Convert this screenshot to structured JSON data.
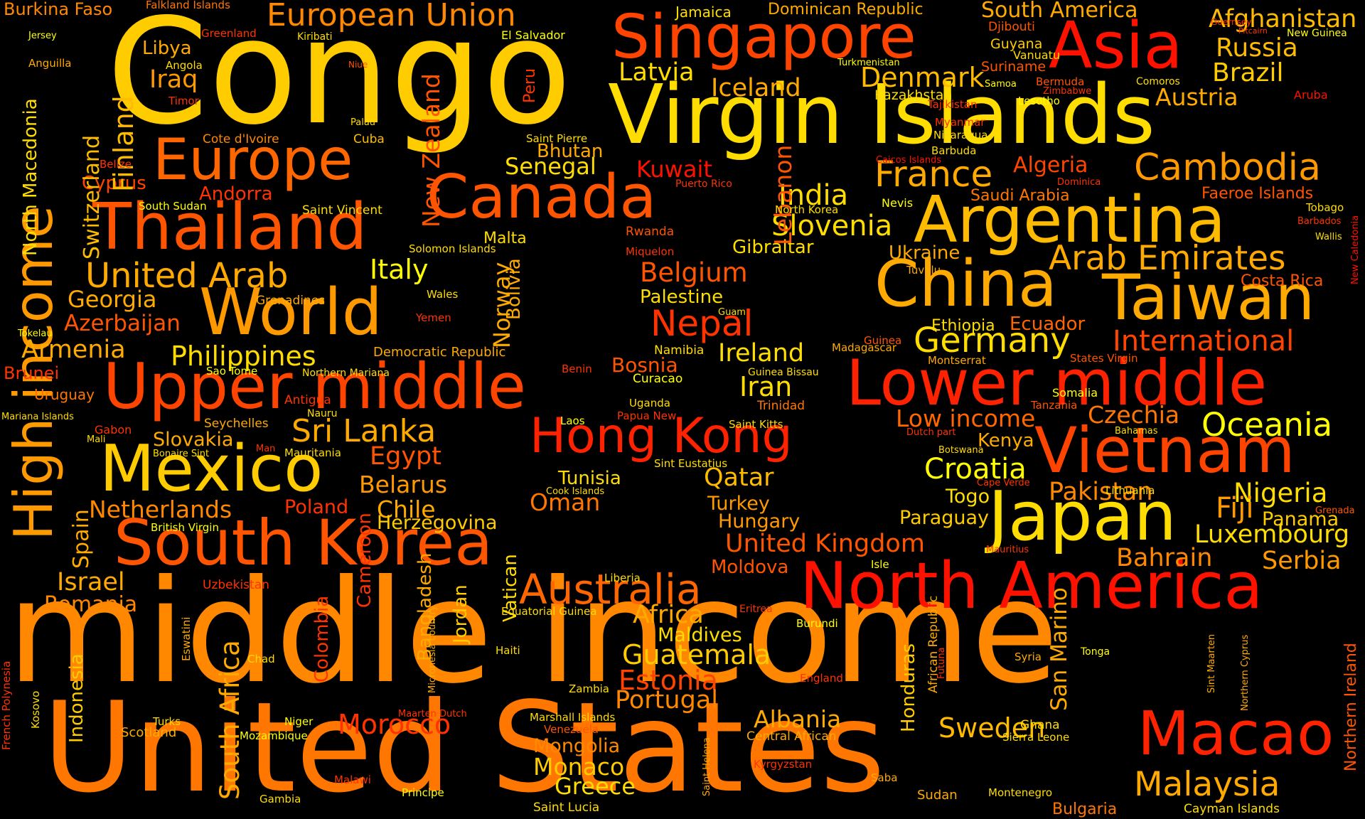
{
  "palette": {
    "background": "#000000",
    "colors": [
      "#ff0000",
      "#ff3300",
      "#ff5500",
      "#ff7700",
      "#ff9900",
      "#ffbb00",
      "#ffdd00",
      "#ffff00"
    ]
  },
  "words": [
    {
      "text": "Congo",
      "color": "#ffcc00"
    },
    {
      "text": "middle income",
      "color": "#ff8800"
    },
    {
      "text": "United States",
      "color": "#ff7700"
    },
    {
      "text": "Virgin Islands",
      "color": "#ffdd00"
    },
    {
      "text": "Singapore",
      "color": "#ff4400"
    },
    {
      "text": "Asia",
      "color": "#ff1100"
    },
    {
      "text": "Europe",
      "color": "#ff6600"
    },
    {
      "text": "European Union",
      "color": "#ff8800"
    },
    {
      "text": "Canada",
      "color": "#ff5500"
    },
    {
      "text": "Thailand",
      "color": "#ff5500"
    },
    {
      "text": "Argentina",
      "color": "#ffbb00"
    },
    {
      "text": "China",
      "color": "#ffaa00"
    },
    {
      "text": "Taiwan",
      "color": "#ffaa00"
    },
    {
      "text": "World",
      "color": "#ff9900"
    },
    {
      "text": "Upper middle",
      "color": "#ff4400"
    },
    {
      "text": "Lower middle",
      "color": "#ff2200"
    },
    {
      "text": "Mexico",
      "color": "#ffcc00"
    },
    {
      "text": "Vietnam",
      "color": "#ff4400"
    },
    {
      "text": "Japan",
      "color": "#ffdd00"
    },
    {
      "text": "South Korea",
      "color": "#ff5500"
    },
    {
      "text": "North America",
      "color": "#ff1100"
    },
    {
      "text": "Macao",
      "color": "#ff2200"
    },
    {
      "text": "High income",
      "color": "#ff9900"
    },
    {
      "text": "Hong Kong",
      "color": "#ff2200"
    },
    {
      "text": "Australia",
      "color": "#ff6600"
    },
    {
      "text": "Afghanistan",
      "color": "#ffbb00"
    },
    {
      "text": "Russia",
      "color": "#ffbb00"
    },
    {
      "text": "Brazil",
      "color": "#ffcc00"
    },
    {
      "text": "Austria",
      "color": "#ffaa00"
    },
    {
      "text": "Cambodia",
      "color": "#ff9900"
    },
    {
      "text": "France",
      "color": "#ffaa00"
    },
    {
      "text": "Denmark",
      "color": "#ffbb00"
    },
    {
      "text": "Iceland",
      "color": "#ffaa00"
    },
    {
      "text": "Latvia",
      "color": "#ffdd00"
    },
    {
      "text": "India",
      "color": "#ffdd00"
    },
    {
      "text": "Slovenia",
      "color": "#ffdd00"
    },
    {
      "text": "Arab Emirates",
      "color": "#ffaa00"
    },
    {
      "text": "Germany",
      "color": "#ffdd00"
    },
    {
      "text": "International",
      "color": "#ff4400"
    },
    {
      "text": "Oceania",
      "color": "#ffff00"
    },
    {
      "text": "Croatia",
      "color": "#ffff00"
    },
    {
      "text": "Nigeria",
      "color": "#ffdd00"
    },
    {
      "text": "Fiji",
      "color": "#ff9900"
    },
    {
      "text": "Luxembourg",
      "color": "#ffdd00"
    },
    {
      "text": "Bahrain",
      "color": "#ff8800"
    },
    {
      "text": "Serbia",
      "color": "#ff9900"
    },
    {
      "text": "Malaysia",
      "color": "#ffaa00"
    },
    {
      "text": "Sweden",
      "color": "#ffbb00"
    },
    {
      "text": "Albania",
      "color": "#ffaa00"
    },
    {
      "text": "Guatemala",
      "color": "#ffcc00"
    },
    {
      "text": "Estonia",
      "color": "#ff4400"
    },
    {
      "text": "Portugal",
      "color": "#ff8800"
    },
    {
      "text": "Greece",
      "color": "#ffdd00"
    },
    {
      "text": "Monaco",
      "color": "#ffcc00"
    },
    {
      "text": "Mongolia",
      "color": "#ff8800"
    },
    {
      "text": "Morocco",
      "color": "#ff3300"
    },
    {
      "text": "Italy",
      "color": "#ffff00"
    },
    {
      "text": "Philippines",
      "color": "#ffdd00"
    },
    {
      "text": "United Arab",
      "color": "#ffaa00"
    },
    {
      "text": "Georgia",
      "color": "#ffaa00"
    },
    {
      "text": "Azerbaijan",
      "color": "#ff5500"
    },
    {
      "text": "Armenia",
      "color": "#ffaa00"
    },
    {
      "text": "Sri Lanka",
      "color": "#ffaa00"
    },
    {
      "text": "Slovakia",
      "color": "#ffaa00"
    },
    {
      "text": "Egypt",
      "color": "#ff5500"
    },
    {
      "text": "Belarus",
      "color": "#ff9900"
    },
    {
      "text": "Chile",
      "color": "#ffaa00"
    },
    {
      "text": "Netherlands",
      "color": "#ff8800"
    },
    {
      "text": "Israel",
      "color": "#ffaa00"
    },
    {
      "text": "Romania",
      "color": "#ff8800"
    },
    {
      "text": "Poland",
      "color": "#ff3300"
    },
    {
      "text": "Herzegovina",
      "color": "#ffcc00"
    },
    {
      "text": "Tunisia",
      "color": "#ffdd00"
    },
    {
      "text": "Oman",
      "color": "#ff7700"
    },
    {
      "text": "Qatar",
      "color": "#ffbb00"
    },
    {
      "text": "Turkey",
      "color": "#ff9900"
    },
    {
      "text": "Hungary",
      "color": "#ff9900"
    },
    {
      "text": "United Kingdom",
      "color": "#ff5500"
    },
    {
      "text": "Moldova",
      "color": "#ff5500"
    },
    {
      "text": "Iran",
      "color": "#ffdd00"
    },
    {
      "text": "Ireland",
      "color": "#ffdd00"
    },
    {
      "text": "Nepal",
      "color": "#ff3300"
    },
    {
      "text": "Belgium",
      "color": "#ff5500"
    },
    {
      "text": "Palestine",
      "color": "#ffdd00"
    },
    {
      "text": "Kuwait",
      "color": "#ff1100"
    },
    {
      "text": "Senegal",
      "color": "#ffdd00"
    },
    {
      "text": "Bhutan",
      "color": "#ffaa00"
    },
    {
      "text": "Gibraltar",
      "color": "#ffdd00"
    },
    {
      "text": "Ecuador",
      "color": "#ff6600"
    },
    {
      "text": "Ethiopia",
      "color": "#ffdd00"
    },
    {
      "text": "Ukraine",
      "color": "#ffaa00"
    },
    {
      "text": "Algeria",
      "color": "#ff4400"
    },
    {
      "text": "Saudi Arabia",
      "color": "#ff7700"
    },
    {
      "text": "Faeroe Islands",
      "color": "#ff5500"
    },
    {
      "text": "Costa Rica",
      "color": "#ff5500"
    },
    {
      "text": "Low income",
      "color": "#ff6600"
    },
    {
      "text": "Czechia",
      "color": "#ff7700"
    },
    {
      "text": "Kenya",
      "color": "#ffaa00"
    },
    {
      "text": "Pakistan",
      "color": "#ff8800"
    },
    {
      "text": "Togo",
      "color": "#ffdd00"
    },
    {
      "text": "Paraguay",
      "color": "#ffcc00"
    },
    {
      "text": "Panama",
      "color": "#ffcc00"
    },
    {
      "text": "Bosnia",
      "color": "#ff5500"
    },
    {
      "text": "Africa",
      "color": "#ffaa00"
    },
    {
      "text": "Maldives",
      "color": "#ffdd00"
    },
    {
      "text": "Iraq",
      "color": "#ff9900"
    },
    {
      "text": "Libya",
      "color": "#ffaa00"
    },
    {
      "text": "Cyprus",
      "color": "#ff4400"
    },
    {
      "text": "Andorra",
      "color": "#ff3300"
    },
    {
      "text": "Finland",
      "color": "#ffbb00"
    },
    {
      "text": "Switzerland",
      "color": "#ffbb00"
    },
    {
      "text": "North Macedonia",
      "color": "#ffdd00"
    },
    {
      "text": "New Zealand",
      "color": "#ff5500"
    },
    {
      "text": "Lebanon",
      "color": "#ff5500"
    },
    {
      "text": "Norway",
      "color": "#ffaa00"
    },
    {
      "text": "Bolivia",
      "color": "#ffaa00"
    },
    {
      "text": "Spain",
      "color": "#ffaa00"
    },
    {
      "text": "South Africa",
      "color": "#ffaa00"
    },
    {
      "text": "Indonesia",
      "color": "#ffcc00"
    },
    {
      "text": "Cameroon",
      "color": "#ff3300"
    },
    {
      "text": "Colombia",
      "color": "#ff3300"
    },
    {
      "text": "Bangladesh",
      "color": "#ffaa00"
    },
    {
      "text": "Jordan",
      "color": "#ffcc00"
    },
    {
      "text": "Vatican",
      "color": "#ffdd00"
    },
    {
      "text": "San Marino",
      "color": "#ffaa00"
    },
    {
      "text": "Honduras",
      "color": "#ffcc00"
    },
    {
      "text": "Brunei",
      "color": "#ff3300"
    },
    {
      "text": "Uruguay",
      "color": "#ff7700"
    },
    {
      "text": "Kazakhstan",
      "color": "#ffdd00"
    },
    {
      "text": "Jamaica",
      "color": "#ffdd00"
    },
    {
      "text": "Dominican Republic",
      "color": "#ffaa00"
    },
    {
      "text": "South America",
      "color": "#ffaa00"
    },
    {
      "text": "Guyana",
      "color": "#ffcc00"
    },
    {
      "text": "Suriname",
      "color": "#ff5500"
    },
    {
      "text": "Djibouti",
      "color": "#ff5500"
    },
    {
      "text": "Vanuatu",
      "color": "#ffdd00"
    },
    {
      "text": "Burkina Faso",
      "color": "#ff8800"
    },
    {
      "text": "Falkland Islands",
      "color": "#ff7700"
    },
    {
      "text": "Greenland",
      "color": "#ff3300"
    },
    {
      "text": "Kiribati",
      "color": "#ffdd00"
    },
    {
      "text": "El Salvador",
      "color": "#ffff00"
    },
    {
      "text": "Jersey",
      "color": "#ffff00"
    },
    {
      "text": "Anguilla",
      "color": "#ffaa00"
    },
    {
      "text": "Angola",
      "color": "#ffdd00"
    },
    {
      "text": "Timor",
      "color": "#ff3300"
    },
    {
      "text": "Niue",
      "color": "#ff5500"
    },
    {
      "text": "Peru",
      "color": "#ff3300"
    },
    {
      "text": "Palau",
      "color": "#ffdd00"
    },
    {
      "text": "Cote d'Ivoire",
      "color": "#ff8800"
    },
    {
      "text": "Cuba",
      "color": "#ffbb00"
    },
    {
      "text": "Saint Pierre",
      "color": "#ffdd00"
    },
    {
      "text": "Belize",
      "color": "#ff3300"
    },
    {
      "text": "South Sudan",
      "color": "#ffff00"
    },
    {
      "text": "Saint Vincent",
      "color": "#ffdd00"
    },
    {
      "text": "Solomon Islands",
      "color": "#ffdd00"
    },
    {
      "text": "Malta",
      "color": "#ffdd00"
    },
    {
      "text": "Rwanda",
      "color": "#ff5500"
    },
    {
      "text": "Miquelon",
      "color": "#ff3300"
    },
    {
      "text": "Puerto Rico",
      "color": "#ff3300"
    },
    {
      "text": "North Korea",
      "color": "#ffdd00"
    },
    {
      "text": "Nevis",
      "color": "#ffff00"
    },
    {
      "text": "Tuvalu",
      "color": "#ffaa00"
    },
    {
      "text": "Grenadines",
      "color": "#ffaa00"
    },
    {
      "text": "Wales",
      "color": "#ffdd00"
    },
    {
      "text": "Yemen",
      "color": "#ff3300"
    },
    {
      "text": "Tokelau",
      "color": "#ffff00"
    },
    {
      "text": "Guam",
      "color": "#ffdd00"
    },
    {
      "text": "Democratic Republic",
      "color": "#ffaa00"
    },
    {
      "text": "Namibia",
      "color": "#ffdd00"
    },
    {
      "text": "Madagascar",
      "color": "#ffaa00"
    },
    {
      "text": "Guinea",
      "color": "#ff5500"
    },
    {
      "text": "Montserrat",
      "color": "#ffaa00"
    },
    {
      "text": "States Virgin",
      "color": "#ff5500"
    },
    {
      "text": "Sao Tome",
      "color": "#ffff00"
    },
    {
      "text": "Northern Mariana",
      "color": "#ffdd00"
    },
    {
      "text": "Benin",
      "color": "#ff3300"
    },
    {
      "text": "Curacao",
      "color": "#ffff00"
    },
    {
      "text": "Guinea Bissau",
      "color": "#ffdd00"
    },
    {
      "text": "Trinidad",
      "color": "#ff7700"
    },
    {
      "text": "Somalia",
      "color": "#ffff00"
    },
    {
      "text": "Tanzania",
      "color": "#ff5500"
    },
    {
      "text": "Antigua",
      "color": "#ff3300"
    },
    {
      "text": "Nauru",
      "color": "#ffdd00"
    },
    {
      "text": "Seychelles",
      "color": "#ffaa00"
    },
    {
      "text": "Uganda",
      "color": "#ffdd00"
    },
    {
      "text": "Papua New",
      "color": "#ff3300"
    },
    {
      "text": "Laos",
      "color": "#ffff00"
    },
    {
      "text": "Saint Kitts",
      "color": "#ffdd00"
    },
    {
      "text": "Mariana Islands",
      "color": "#ffdd00"
    },
    {
      "text": "Gabon",
      "color": "#ff3300"
    },
    {
      "text": "Mali",
      "color": "#ffdd00"
    },
    {
      "text": "Bonaire Sint",
      "color": "#ffdd00"
    },
    {
      "text": "Man",
      "color": "#ff3300"
    },
    {
      "text": "Mauritania",
      "color": "#ffdd00"
    },
    {
      "text": "Sint Eustatius",
      "color": "#ffdd00"
    },
    {
      "text": "Cook Islands",
      "color": "#ffdd00"
    },
    {
      "text": "Dutch part",
      "color": "#ff3300"
    },
    {
      "text": "Bahamas",
      "color": "#ffdd00"
    },
    {
      "text": "Botswana",
      "color": "#ffdd00"
    },
    {
      "text": "Cape Verde",
      "color": "#ff3300"
    },
    {
      "text": "Lithuania",
      "color": "#ffdd00"
    },
    {
      "text": "Grenada",
      "color": "#ff5500"
    },
    {
      "text": "British Virgin",
      "color": "#ffff00"
    },
    {
      "text": "Mauritius",
      "color": "#ff3300"
    },
    {
      "text": "Isle",
      "color": "#ffff00"
    },
    {
      "text": "Liberia",
      "color": "#ffdd00"
    },
    {
      "text": "Uzbekistan",
      "color": "#ff3300"
    },
    {
      "text": "Equatorial Guinea",
      "color": "#ffdd00"
    },
    {
      "text": "Eritrea",
      "color": "#ff3300"
    },
    {
      "text": "Burundi",
      "color": "#ffff00"
    },
    {
      "text": "Eswatini",
      "color": "#ffaa00"
    },
    {
      "text": "Chad",
      "color": "#ffdd00"
    },
    {
      "text": "Haiti",
      "color": "#ffdd00"
    },
    {
      "text": "Micronesia country",
      "color": "#ffaa00"
    },
    {
      "text": "African Republic",
      "color": "#ffaa00"
    },
    {
      "text": "Futuna",
      "color": "#ff3300"
    },
    {
      "text": "England",
      "color": "#ff3300"
    },
    {
      "text": "Syria",
      "color": "#ffaa00"
    },
    {
      "text": "Tonga",
      "color": "#ffff00"
    },
    {
      "text": "Sint Maarten",
      "color": "#ffaa00"
    },
    {
      "text": "Northern Cyprus",
      "color": "#ffaa00"
    },
    {
      "text": "Northern Ireland",
      "color": "#ff5500"
    },
    {
      "text": "French Polynesia",
      "color": "#ff3300"
    },
    {
      "text": "Kosovo",
      "color": "#ffdd00"
    },
    {
      "text": "Zambia",
      "color": "#ffdd00"
    },
    {
      "text": "Turks",
      "color": "#ffdd00"
    },
    {
      "text": "Scotland",
      "color": "#ffaa00"
    },
    {
      "text": "Niger",
      "color": "#ffff00"
    },
    {
      "text": "Mozambique",
      "color": "#ffff00"
    },
    {
      "text": "Maarten Dutch",
      "color": "#ff3300"
    },
    {
      "text": "Marshall Islands",
      "color": "#ffdd00"
    },
    {
      "text": "Venezuela",
      "color": "#ff5500"
    },
    {
      "text": "Saint Helena",
      "color": "#ffaa00"
    },
    {
      "text": "Central African",
      "color": "#ffaa00"
    },
    {
      "text": "Kyrgyzstan",
      "color": "#ff3300"
    },
    {
      "text": "Ghana",
      "color": "#ffdd00"
    },
    {
      "text": "Sierra Leone",
      "color": "#ffdd00"
    },
    {
      "text": "Saba",
      "color": "#ffaa00"
    },
    {
      "text": "Sudan",
      "color": "#ffaa00"
    },
    {
      "text": "Montenegro",
      "color": "#ffdd00"
    },
    {
      "text": "Bulgaria",
      "color": "#ff7700"
    },
    {
      "text": "Cayman Islands",
      "color": "#ffdd00"
    },
    {
      "text": "Malawi",
      "color": "#ff3300"
    },
    {
      "text": "Gambia",
      "color": "#ffdd00"
    },
    {
      "text": "Principe",
      "color": "#ffff00"
    },
    {
      "text": "Saint Lucia",
      "color": "#ffdd00"
    },
    {
      "text": "Turkmenistan",
      "color": "#ffff00"
    },
    {
      "text": "Samoa",
      "color": "#ffff00"
    },
    {
      "text": "Bermuda",
      "color": "#ff5500"
    },
    {
      "text": "Comoros",
      "color": "#ffdd00"
    },
    {
      "text": "Tajikistan",
      "color": "#ff3300"
    },
    {
      "text": "Lesotho",
      "color": "#ffff00"
    },
    {
      "text": "Zimbabwe",
      "color": "#ff3300"
    },
    {
      "text": "Aruba",
      "color": "#ff1100"
    },
    {
      "text": "Myanmar",
      "color": "#ff3300"
    },
    {
      "text": "Nicaragua",
      "color": "#ffdd00"
    },
    {
      "text": "Barbuda",
      "color": "#ffdd00"
    },
    {
      "text": "Caicos Islands",
      "color": "#ff1100"
    },
    {
      "text": "Dominica",
      "color": "#ff3300"
    },
    {
      "text": "Tobago",
      "color": "#ffdd00"
    },
    {
      "text": "Barbados",
      "color": "#ff3300"
    },
    {
      "text": "Wallis",
      "color": "#ffdd00"
    },
    {
      "text": "New Caledonia",
      "color": "#ff1100"
    },
    {
      "text": "Guernsey",
      "color": "#ff3300"
    },
    {
      "text": "Pitcairn",
      "color": "#ff3300"
    },
    {
      "text": "New Guinea",
      "color": "#ffff00"
    }
  ]
}
